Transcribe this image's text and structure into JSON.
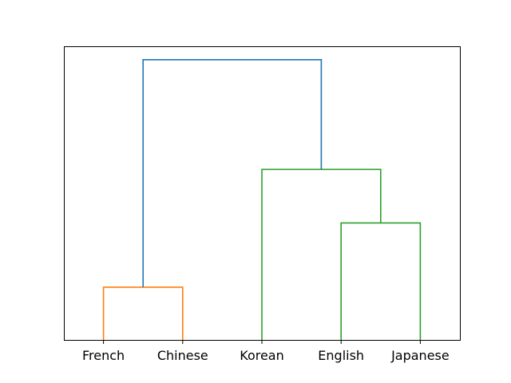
{
  "chart_data": {
    "type": "dendrogram",
    "orientation": "top",
    "leaves": [
      "French",
      "Chinese",
      "Korean",
      "English",
      "Japanese"
    ],
    "links": [
      {
        "left": "French",
        "right": "Chinese",
        "height": 1.0,
        "color": "#ff7f0e",
        "name": "French-Chinese"
      },
      {
        "left": "English",
        "right": "Japanese",
        "height": 2.2,
        "color": "#2ca02c",
        "name": "English-Japanese"
      },
      {
        "left": "Korean",
        "right": "English-Japanese",
        "height": 3.2,
        "color": "#2ca02c",
        "name": "Korean-English-Japanese"
      },
      {
        "left": "French-Chinese",
        "right": "Korean-English-Japanese",
        "height": 5.25,
        "color": "#1f77b4",
        "name": "root"
      }
    ],
    "ylim": [
      0,
      5.5
    ],
    "y_ticks_visible": false,
    "grid": false
  }
}
